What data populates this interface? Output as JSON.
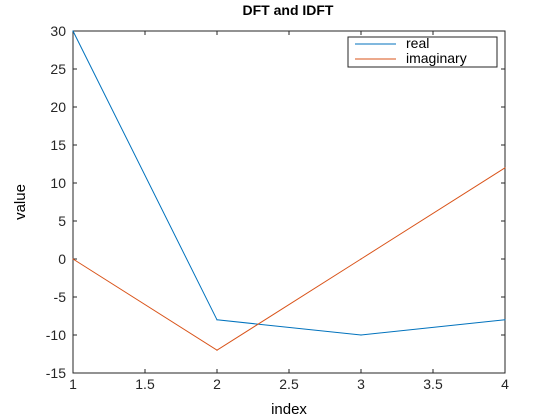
{
  "chart_data": {
    "type": "line",
    "title": "DFT and IDFT",
    "xlabel": "index",
    "ylabel": "value",
    "xlim": [
      1,
      4
    ],
    "ylim": [
      -15,
      30
    ],
    "xticks": [
      1,
      1.5,
      2,
      2.5,
      3,
      3.5,
      4
    ],
    "yticks": [
      -15,
      -10,
      -5,
      0,
      5,
      10,
      15,
      20,
      25,
      30
    ],
    "grid": false,
    "legend_position": "top-right",
    "x": [
      1,
      2,
      3,
      4
    ],
    "series": [
      {
        "name": "real",
        "color": "#0072BD",
        "values": [
          30,
          -8,
          -10,
          -8
        ]
      },
      {
        "name": "imaginary",
        "color": "#D95319",
        "values": [
          0,
          -12,
          0,
          12
        ]
      }
    ]
  }
}
